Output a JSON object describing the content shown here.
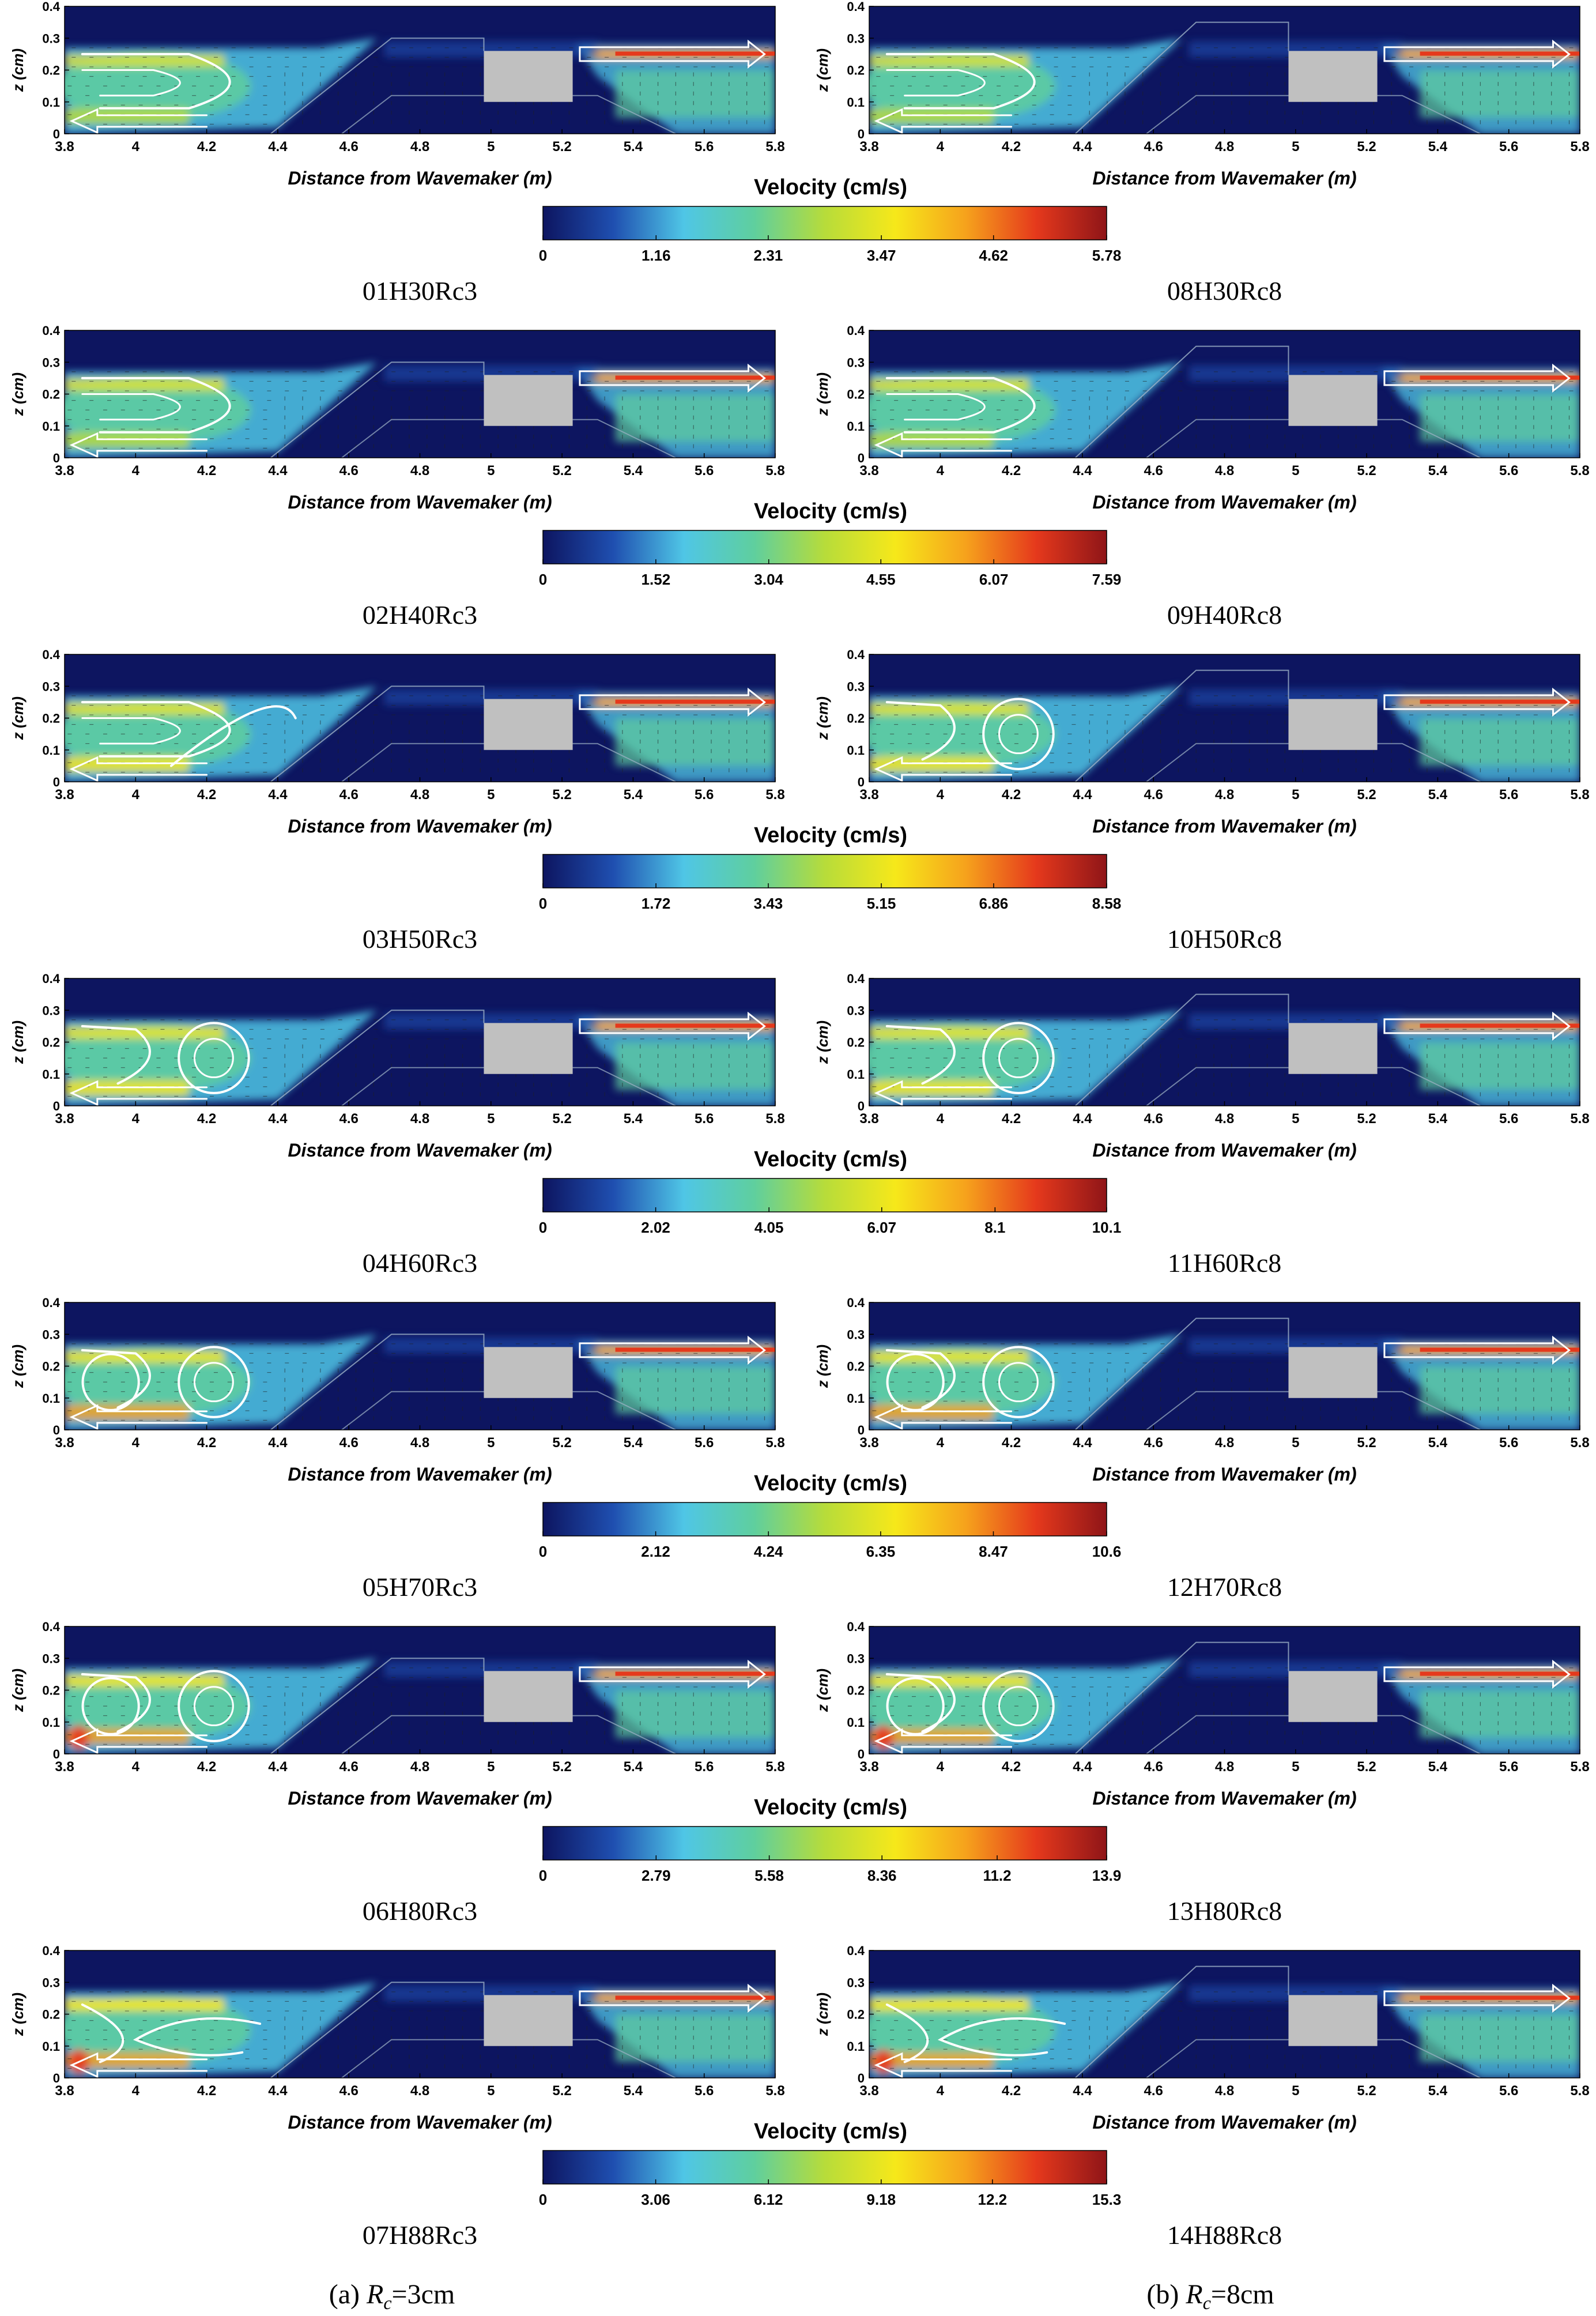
{
  "figure": {
    "x_axis_label": "Distance from Wavemaker (m)",
    "y_axis_label": "z (cm)",
    "colorbar_title": "Velocity (cm/s)",
    "x_ticks": [
      "3.8",
      "4",
      "4.2",
      "4.4",
      "4.6",
      "4.8",
      "5",
      "5.2",
      "5.4",
      "5.6",
      "5.8"
    ],
    "y_ticks": [
      "0",
      "0.1",
      "0.2",
      "0.3",
      "0.4"
    ],
    "column_captions": [
      {
        "prefix": "(a)",
        "symbol": "R",
        "subscript": "c",
        "value": "=3cm"
      },
      {
        "prefix": "(b)",
        "symbol": "R",
        "subscript": "c",
        "value": "=8cm"
      }
    ]
  },
  "colors": {
    "colormap": [
      "#0d1560",
      "#1f4fb0",
      "#4fc6e6",
      "#5fcf9e",
      "#b7dc3a",
      "#f6e81a",
      "#f6a21c",
      "#e5391c",
      "#8f1518"
    ],
    "structure": "#c0c0c0",
    "flow_arrows": "#ffffff",
    "vectors": "#222222"
  },
  "chart_data": [
    {
      "row": 1,
      "type": "heatmap",
      "colorbar_ticks": [
        "0",
        "1.16",
        "2.31",
        "3.47",
        "4.62",
        "5.78"
      ],
      "vmax": 5.78,
      "panels": [
        {
          "label": "01H30Rc3",
          "Rc_cm": 3,
          "eddy": "elongated"
        },
        {
          "label": "08H30Rc8",
          "Rc_cm": 8,
          "eddy": "elongated"
        }
      ]
    },
    {
      "row": 2,
      "type": "heatmap",
      "colorbar_ticks": [
        "0",
        "1.52",
        "3.04",
        "4.55",
        "6.07",
        "7.59"
      ],
      "vmax": 7.59,
      "panels": [
        {
          "label": "02H40Rc3",
          "Rc_cm": 3,
          "eddy": "elongated"
        },
        {
          "label": "09H40Rc8",
          "Rc_cm": 8,
          "eddy": "elongated"
        }
      ]
    },
    {
      "row": 3,
      "type": "heatmap",
      "colorbar_ticks": [
        "0",
        "1.72",
        "3.43",
        "5.15",
        "6.86",
        "8.58"
      ],
      "vmax": 8.58,
      "panels": [
        {
          "label": "03H50Rc3",
          "Rc_cm": 3,
          "eddy": "elongated-swirl"
        },
        {
          "label": "10H50Rc8",
          "Rc_cm": 8,
          "eddy": "circle"
        }
      ]
    },
    {
      "row": 4,
      "type": "heatmap",
      "colorbar_ticks": [
        "0",
        "2.02",
        "4.05",
        "6.07",
        "8.1",
        "10.1"
      ],
      "vmax": 10.1,
      "panels": [
        {
          "label": "04H60Rc3",
          "Rc_cm": 3,
          "eddy": "circle"
        },
        {
          "label": "11H60Rc8",
          "Rc_cm": 8,
          "eddy": "circle"
        }
      ]
    },
    {
      "row": 5,
      "type": "heatmap",
      "colorbar_ticks": [
        "0",
        "2.12",
        "4.24",
        "6.35",
        "8.47",
        "10.6"
      ],
      "vmax": 10.6,
      "panels": [
        {
          "label": "05H70Rc3",
          "Rc_cm": 3,
          "eddy": "double"
        },
        {
          "label": "12H70Rc8",
          "Rc_cm": 8,
          "eddy": "double"
        }
      ]
    },
    {
      "row": 6,
      "type": "heatmap",
      "colorbar_ticks": [
        "0",
        "2.79",
        "5.58",
        "8.36",
        "11.2",
        "13.9"
      ],
      "vmax": 13.9,
      "panels": [
        {
          "label": "06H80Rc3",
          "Rc_cm": 3,
          "eddy": "double"
        },
        {
          "label": "13H80Rc8",
          "Rc_cm": 8,
          "eddy": "double"
        }
      ]
    },
    {
      "row": 7,
      "type": "heatmap",
      "colorbar_ticks": [
        "0",
        "3.06",
        "6.12",
        "9.18",
        "12.2",
        "15.3"
      ],
      "vmax": 15.3,
      "panels": [
        {
          "label": "07H88Rc3",
          "Rc_cm": 3,
          "eddy": "wavy"
        },
        {
          "label": "14H88Rc8",
          "Rc_cm": 8,
          "eddy": "wavy"
        }
      ]
    }
  ]
}
